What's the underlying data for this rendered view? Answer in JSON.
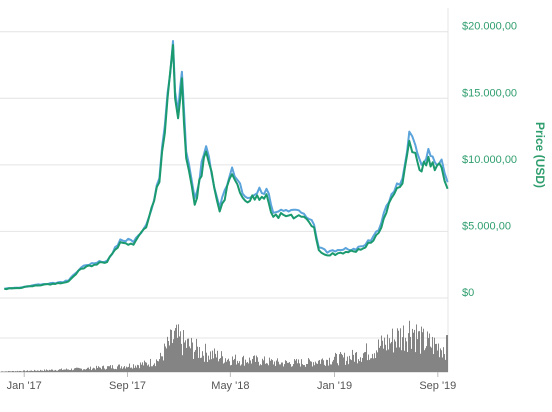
{
  "chart_data": {
    "type": "line",
    "ylabel": "Price (USD)",
    "ylim": [
      0,
      22000
    ],
    "y_ticks": [
      {
        "value": 0,
        "label": "$0"
      },
      {
        "value": 5000,
        "label": "$5.000,00"
      },
      {
        "value": 10000,
        "label": "$10.000,00"
      },
      {
        "value": 15000,
        "label": "$15.000,00"
      },
      {
        "value": 20000,
        "label": "$20.000,00"
      }
    ],
    "x_ticks": [
      "Jan '17",
      "Sep '17",
      "May '18",
      "Jan '19",
      "Sep '19"
    ],
    "grid": true,
    "colors": {
      "series_a": "#5ba3db",
      "series_b": "#1a9a6e",
      "volume": "#777777",
      "axis_text": "#2f9e6e"
    },
    "series": [
      {
        "x": [
          "2016-11",
          "2016-12",
          "2017-01",
          "2017-02",
          "2017-03",
          "2017-04",
          "2017-05",
          "2017-06",
          "2017-07",
          "2017-08",
          "2017-09",
          "2017-10",
          "2017-11",
          "2017-12-17",
          "2017-12-22",
          "2017-12-29",
          "2018-01-07",
          "2018-01-17",
          "2018-02-06",
          "2018-03-05",
          "2018-04-06",
          "2018-05-05",
          "2018-06-05",
          "2018-07-25",
          "2018-08-10",
          "2018-09-15",
          "2018-10-15",
          "2018-11-14",
          "2018-11-25",
          "2018-12-15",
          "2019-01-15",
          "2019-02-15",
          "2019-03-15",
          "2019-04-15",
          "2019-05-15",
          "2019-06-10",
          "2019-06-26",
          "2019-07-10",
          "2019-07-25",
          "2019-08-10",
          "2019-08-25",
          "2019-09-10",
          "2019-09-24"
        ],
        "values": [
          700,
          770,
          900,
          1050,
          1100,
          1300,
          2300,
          2600,
          2800,
          4400,
          4200,
          5500,
          9000,
          19300,
          15500,
          14000,
          17000,
          11000,
          7500,
          11400,
          6800,
          9800,
          7600,
          8200,
          6400,
          6500,
          6400,
          5500,
          3800,
          3400,
          3600,
          3700,
          4000,
          5100,
          7800,
          9000,
          12500,
          11500,
          10000,
          11200,
          10200,
          10400,
          8700
        ]
      },
      {
        "x": [
          "2016-11",
          "2016-12",
          "2017-01",
          "2017-02",
          "2017-03",
          "2017-04",
          "2017-05",
          "2017-06",
          "2017-07",
          "2017-08",
          "2017-09",
          "2017-10",
          "2017-11",
          "2017-12-17",
          "2017-12-22",
          "2017-12-29",
          "2018-01-07",
          "2018-01-17",
          "2018-02-06",
          "2018-03-05",
          "2018-04-06",
          "2018-05-05",
          "2018-06-05",
          "2018-07-25",
          "2018-08-10",
          "2018-09-15",
          "2018-10-15",
          "2018-11-14",
          "2018-11-25",
          "2018-12-15",
          "2019-01-15",
          "2019-02-15",
          "2019-03-15",
          "2019-04-15",
          "2019-05-15",
          "2019-06-10",
          "2019-06-26",
          "2019-07-10",
          "2019-07-25",
          "2019-08-10",
          "2019-08-25",
          "2019-09-10",
          "2019-09-24"
        ],
        "values": [
          680,
          750,
          880,
          1000,
          1050,
          1250,
          2200,
          2500,
          2700,
          4200,
          4000,
          5300,
          8700,
          19000,
          15000,
          13500,
          16500,
          10500,
          7000,
          11000,
          6500,
          9300,
          7300,
          7800,
          6100,
          6200,
          6100,
          5300,
          3600,
          3200,
          3400,
          3500,
          3800,
          4900,
          7500,
          8600,
          11800,
          10900,
          9500,
          10600,
          9600,
          9800,
          8200
        ]
      }
    ],
    "volume": {
      "x": [
        "2016-11",
        "2017-01",
        "2017-05",
        "2017-08",
        "2017-10",
        "2017-11",
        "2017-12-01",
        "2017-12-20",
        "2018-01-10",
        "2018-02-10",
        "2018-03-15",
        "2018-05-01",
        "2018-07-01",
        "2018-09-01",
        "2018-11-01",
        "2018-12-15",
        "2019-02-01",
        "2019-04-01",
        "2019-05-15",
        "2019-06-15",
        "2019-07-01",
        "2019-07-20",
        "2019-08-10",
        "2019-09-01",
        "2019-09-20",
        "2019-09-25"
      ],
      "values": [
        0.01,
        0.02,
        0.05,
        0.09,
        0.13,
        0.2,
        0.38,
        0.55,
        0.45,
        0.35,
        0.28,
        0.2,
        0.18,
        0.14,
        0.15,
        0.2,
        0.22,
        0.35,
        0.5,
        0.6,
        0.7,
        0.5,
        0.45,
        0.4,
        0.38,
        0.65
      ]
    }
  }
}
